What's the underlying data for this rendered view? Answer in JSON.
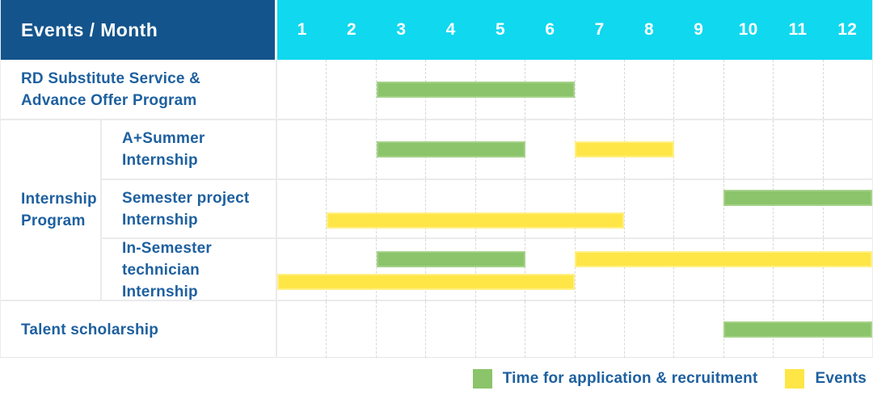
{
  "chart_data": {
    "type": "bar",
    "variant": "gantt-schedule",
    "title_cell": "Events / Month",
    "x_axis": {
      "label": "Month",
      "ticks": [
        "1",
        "2",
        "3",
        "4",
        "5",
        "6",
        "7",
        "8",
        "9",
        "10",
        "11",
        "12"
      ],
      "range": [
        1,
        12
      ],
      "gridlines": "dashed-vertical"
    },
    "legend_position": "bottom-right",
    "series": [
      {
        "key": "recruitment",
        "name": "Time for application & recruitment",
        "color": "#8bc46a"
      },
      {
        "key": "events",
        "name": "Events",
        "color": "#ffe647"
      }
    ],
    "group_cell": {
      "label_lines": [
        "Internship",
        "Program"
      ]
    },
    "rows": [
      {
        "group": null,
        "label_lines": [
          "RD Substitute Service &",
          "Advance Offer Program"
        ],
        "bars": [
          {
            "series": "recruitment",
            "start_month": 3,
            "end_month": 6,
            "lane": "mid"
          }
        ]
      },
      {
        "group": "Internship Program",
        "label_lines": [
          "A+Summer",
          "Internship"
        ],
        "bars": [
          {
            "series": "recruitment",
            "start_month": 3,
            "end_month": 5,
            "lane": "mid"
          },
          {
            "series": "events",
            "start_month": 7,
            "end_month": 8,
            "lane": "mid"
          }
        ]
      },
      {
        "group": "Internship Program",
        "label_lines": [
          "Semester project",
          "Internship"
        ],
        "bars": [
          {
            "series": "recruitment",
            "start_month": 10,
            "end_month": 12,
            "lane": "top"
          },
          {
            "series": "events",
            "start_month": 2,
            "end_month": 7,
            "lane": "bottom"
          }
        ]
      },
      {
        "group": "Internship Program",
        "label_lines": [
          "In-Semester",
          "technician Internship"
        ],
        "bars": [
          {
            "series": "recruitment",
            "start_month": 3,
            "end_month": 5,
            "lane": "top"
          },
          {
            "series": "events",
            "start_month": 7,
            "end_month": 12,
            "lane": "top"
          },
          {
            "series": "events",
            "start_month": 1,
            "end_month": 6,
            "lane": "bottom"
          }
        ]
      },
      {
        "group": null,
        "label_lines": [
          "Talent scholarship"
        ],
        "bars": [
          {
            "series": "recruitment",
            "start_month": 10,
            "end_month": 12,
            "lane": "mid"
          }
        ]
      }
    ]
  },
  "colors": {
    "recruitment": "#8bc46a",
    "recruitment_border": "#a4d288",
    "events": "#ffe647",
    "events_border": "#fff083",
    "header_navy": "#14548c",
    "header_cyan": "#10d8ef",
    "label_text": "#1e609f",
    "grid_line": "#d8d8d8",
    "row_line": "#ebebeb"
  }
}
